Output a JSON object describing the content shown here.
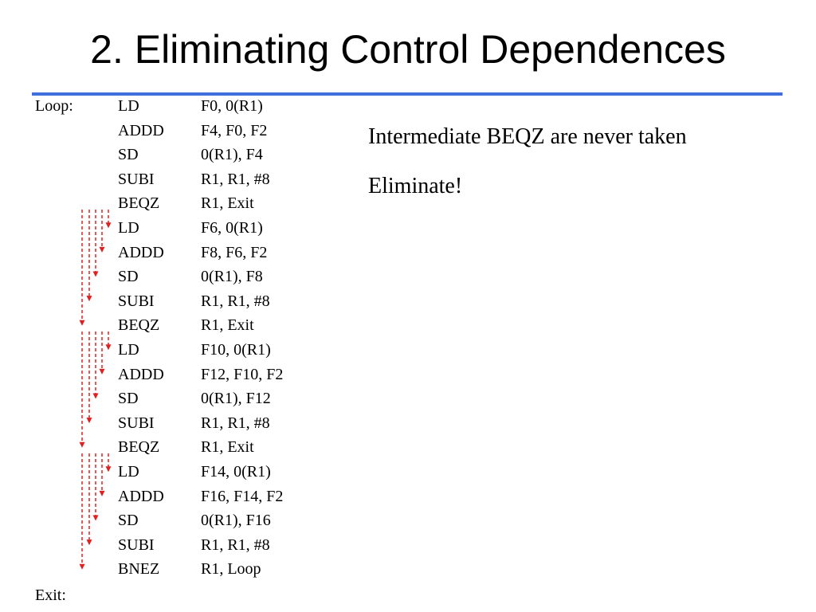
{
  "title": "2. Eliminating Control Dependences",
  "accent_color": "#3f6fdc",
  "arrow_color": "#e02020",
  "code": {
    "loop_label": "Loop:",
    "exit_label": "Exit:",
    "instructions": [
      {
        "op": "LD",
        "args": "F0, 0(R1)"
      },
      {
        "op": "ADDD",
        "args": "F4, F0, F2"
      },
      {
        "op": "SD",
        "args": "0(R1), F4"
      },
      {
        "op": "SUBI",
        "args": "R1, R1, #8"
      },
      {
        "op": "BEQZ",
        "args": "R1, Exit"
      },
      {
        "op": "LD",
        "args": "F6, 0(R1)"
      },
      {
        "op": "ADDD",
        "args": "F8, F6, F2"
      },
      {
        "op": "SD",
        "args": "0(R1), F8"
      },
      {
        "op": "SUBI",
        "args": "R1, R1, #8"
      },
      {
        "op": "BEQZ",
        "args": "R1, Exit"
      },
      {
        "op": "LD",
        "args": "F10, 0(R1)"
      },
      {
        "op": "ADDD",
        "args": "F12, F10, F2"
      },
      {
        "op": "SD",
        "args": "0(R1), F12"
      },
      {
        "op": "SUBI",
        "args": "R1, R1, #8"
      },
      {
        "op": "BEQZ",
        "args": "R1, Exit"
      },
      {
        "op": "LD",
        "args": "F14, 0(R1)"
      },
      {
        "op": "ADDD",
        "args": "F16, F14, F2"
      },
      {
        "op": "SD",
        "args": "0(R1), F16"
      },
      {
        "op": "SUBI",
        "args": "R1, R1, #8"
      },
      {
        "op": "BNEZ",
        "args": "R1, Loop"
      }
    ]
  },
  "notes": [
    "Intermediate BEQZ are never taken",
    "Eliminate!"
  ]
}
